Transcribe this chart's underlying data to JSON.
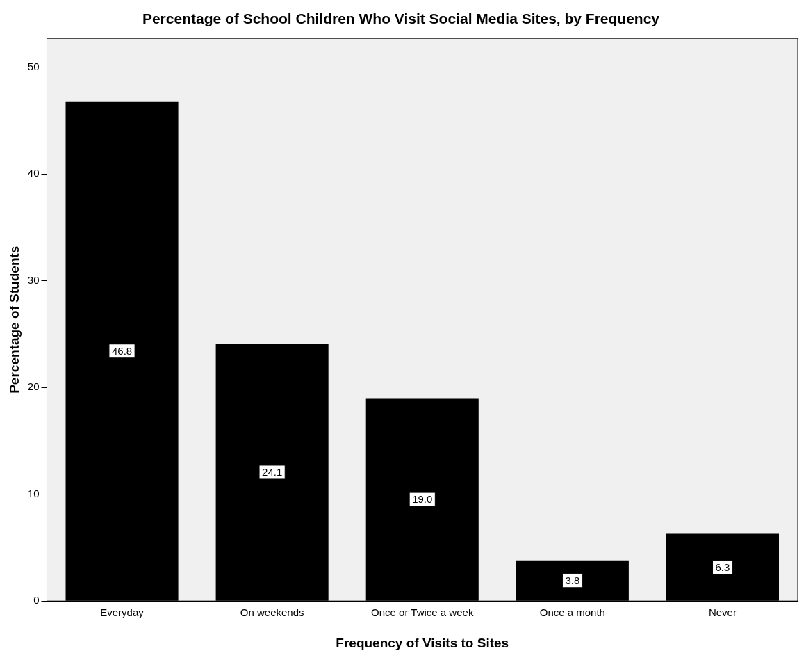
{
  "chart_data": {
    "type": "bar",
    "title": "Percentage of School Children Who Visit Social Media Sites, by Frequency",
    "xlabel": "Frequency of Visits to Sites",
    "ylabel": "Percentage of Students",
    "categories": [
      "Everyday",
      "On weekends",
      "Once or Twice a week",
      "Once a month",
      "Never"
    ],
    "values": [
      46.8,
      24.1,
      19.0,
      3.8,
      6.3
    ],
    "color": "#000000",
    "value_labels": [
      "46.8",
      "24.1",
      "19.0",
      "3.8",
      "6.3"
    ],
    "ylim": [
      0,
      52.7
    ],
    "yticks": [
      0,
      10,
      20,
      30,
      40,
      50
    ],
    "grid": false,
    "legend": false
  }
}
